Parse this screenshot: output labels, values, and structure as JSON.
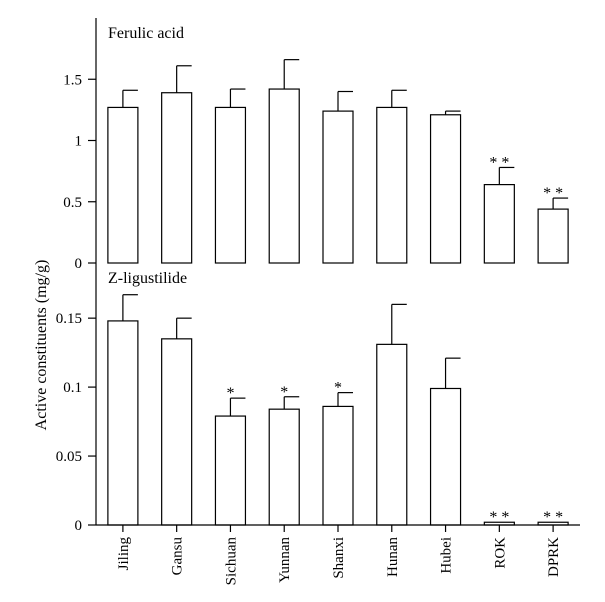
{
  "chart_data": {
    "type": "bar",
    "ylabel": "Active constituents (mg/g)",
    "categories": [
      "Jiling",
      "Gansu",
      "Sichuan",
      "Yunnan",
      "Shanxi",
      "Hunan",
      "Hubei",
      "ROK",
      "DPRK"
    ],
    "panels": [
      {
        "title": "Ferulic acid",
        "ylim": [
          0,
          2.0
        ],
        "yticks": [
          0,
          0.5,
          1,
          1.5
        ],
        "ytick_labels": [
          "0",
          "0.5",
          "1",
          "1.5"
        ],
        "values": [
          1.27,
          1.39,
          1.27,
          1.42,
          1.24,
          1.27,
          1.21,
          0.64,
          0.44
        ],
        "errors": [
          0.14,
          0.22,
          0.15,
          0.24,
          0.16,
          0.14,
          0.03,
          0.14,
          0.09
        ],
        "significance": [
          "",
          "",
          "",
          "",
          "",
          "",
          "",
          "* *",
          "* *"
        ]
      },
      {
        "title": "Z-ligustilide",
        "ylim": [
          0,
          0.19
        ],
        "yticks": [
          0,
          0.05,
          0.1,
          0.15
        ],
        "ytick_labels": [
          "0",
          "0.05",
          "0.1",
          "0.15"
        ],
        "values": [
          0.148,
          0.135,
          0.079,
          0.084,
          0.086,
          0.131,
          0.099,
          0.002,
          0.002
        ],
        "errors": [
          0.019,
          0.015,
          0.013,
          0.009,
          0.01,
          0.029,
          0.022,
          0.0,
          0.0
        ],
        "significance": [
          "",
          "",
          "*",
          "*",
          "*",
          "",
          "",
          "* *",
          "* *"
        ]
      }
    ]
  }
}
